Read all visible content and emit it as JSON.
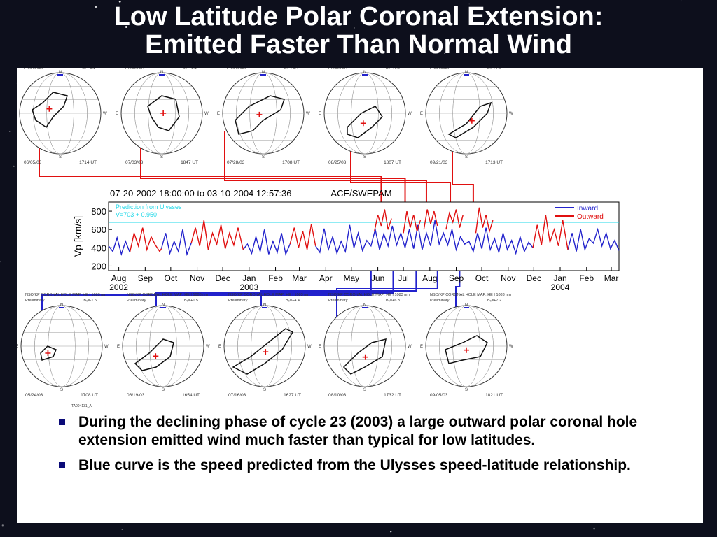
{
  "slide": {
    "title_line1": "Low Latitude Polar Coronal Extension:",
    "title_line2": "Emitted Faster Than Normal Wind",
    "bullets": [
      "During the declining phase of cycle 23 (2003) a large outward polar coronal hole extension emitted wind much faster than typical for low latitudes.",
      "Blue curve is the speed predicted from the Ulysses  speed-latitude relationship."
    ],
    "figure_id": "TA004131_A"
  },
  "colors": {
    "inward": "#2222cc",
    "outward": "#e01010",
    "prediction": "#22d8e8",
    "ink": "#333333"
  },
  "coronal_maps": {
    "header": "NSO/KP CORONAL HOLE MAP: HE I 1083 nm",
    "status": "Preliminary",
    "top_row": [
      {
        "date": "06/05/03",
        "time": "1714 UT",
        "b0": "B₀=-0.1"
      },
      {
        "date": "07/03/03",
        "time": "1847 UT",
        "b0": "B₀=+3.1"
      },
      {
        "date": "07/28/03",
        "time": "1708 UT",
        "b0": "B₀=+5.4"
      },
      {
        "date": "08/25/03",
        "time": "1807 UT",
        "b0": "B₀=+7.0"
      },
      {
        "date": "09/21/03",
        "time": "1713 UT",
        "b0": "B₀=+7.0"
      }
    ],
    "bottom_row": [
      {
        "date": "05/24/03",
        "time": "1708 UT",
        "b0": "B₀=-1.5"
      },
      {
        "date": "06/19/03",
        "time": "1654 UT",
        "b0": "B₀=+1.5"
      },
      {
        "date": "07/16/03",
        "time": "1627 UT",
        "b0": "B₀=+4.4"
      },
      {
        "date": "08/10/03",
        "time": "1732 UT",
        "b0": "B₀=+6.3"
      },
      {
        "date": "09/05/03",
        "time": "1821 UT",
        "b0": "B₀=+7.2"
      }
    ],
    "compass": {
      "n": "N",
      "s": "S",
      "e": "E",
      "w": "W"
    }
  },
  "chart_data": {
    "type": "line",
    "title": "ACE/SWEPAM",
    "range_label": "07-20-2002 18:00:00 to 03-10-2004 12:57:36",
    "ylabel": "Vp [km/s]",
    "ylim": [
      150,
      900
    ],
    "yticks": [
      200,
      400,
      600,
      800
    ],
    "xlim": [
      "2002-07-20",
      "2004-03-10"
    ],
    "x_tick_labels": [
      "Aug",
      "Sep",
      "Oct",
      "Nov",
      "Dec",
      "Jan",
      "Feb",
      "Mar",
      "Apr",
      "May",
      "Jun",
      "Jul",
      "Aug",
      "Sep",
      "Oct",
      "Nov",
      "Dec",
      "Jan",
      "Feb",
      "Mar"
    ],
    "x_tick_dates": [
      "2002-08-01",
      "2002-09-01",
      "2002-10-01",
      "2002-11-01",
      "2002-12-01",
      "2003-01-01",
      "2003-02-01",
      "2003-03-01",
      "2003-04-01",
      "2003-05-01",
      "2003-06-01",
      "2003-07-01",
      "2003-08-01",
      "2003-09-01",
      "2003-10-01",
      "2003-11-01",
      "2003-12-01",
      "2004-01-01",
      "2004-02-01",
      "2004-03-01"
    ],
    "year_labels": [
      {
        "label": "2002",
        "date": "2002-08-01"
      },
      {
        "label": "2003",
        "date": "2003-01-01"
      },
      {
        "label": "2004",
        "date": "2004-01-01"
      }
    ],
    "legend": [
      "Inward",
      "Outward"
    ],
    "legend_position": "top-right",
    "annotation": [
      "Prediction from Ulysses",
      "V=703 + 0.950"
    ],
    "prediction_level": 680,
    "series": [
      {
        "name": "Inward",
        "color": "#2222cc",
        "segments": [
          {
            "dates": [
              "2002-07-20",
              "2002-07-25",
              "2002-07-30",
              "2002-08-04",
              "2002-08-09",
              "2002-08-14"
            ],
            "values": [
              420,
              360,
              510,
              330,
              470,
              350
            ]
          },
          {
            "dates": [
              "2002-09-20",
              "2002-09-25",
              "2002-09-30",
              "2002-10-05",
              "2002-10-10",
              "2002-10-15",
              "2002-10-20",
              "2002-10-25"
            ],
            "values": [
              390,
              560,
              340,
              470,
              360,
              600,
              330,
              450
            ]
          },
          {
            "dates": [
              "2002-12-25",
              "2002-12-30",
              "2003-01-04",
              "2003-01-09",
              "2003-01-14",
              "2003-01-19",
              "2003-01-24",
              "2003-01-29",
              "2003-02-03",
              "2003-02-08",
              "2003-02-13",
              "2003-02-18"
            ],
            "values": [
              380,
              440,
              340,
              520,
              360,
              600,
              330,
              470,
              350,
              560,
              330,
              440
            ]
          },
          {
            "dates": [
              "2003-03-20",
              "2003-03-25",
              "2003-03-30",
              "2003-04-04",
              "2003-04-09",
              "2003-04-14",
              "2003-04-19",
              "2003-04-24",
              "2003-04-29",
              "2003-05-04",
              "2003-05-09",
              "2003-05-14",
              "2003-05-19",
              "2003-05-24",
              "2003-05-29",
              "2003-06-03",
              "2003-06-08",
              "2003-06-13",
              "2003-06-18",
              "2003-06-23",
              "2003-06-28",
              "2003-07-03",
              "2003-07-08",
              "2003-07-13",
              "2003-07-18",
              "2003-07-23",
              "2003-07-28",
              "2003-08-02",
              "2003-08-07",
              "2003-08-12",
              "2003-08-17",
              "2003-08-22",
              "2003-08-27",
              "2003-09-01",
              "2003-09-06",
              "2003-09-11",
              "2003-09-16",
              "2003-09-21",
              "2003-09-26",
              "2003-10-01",
              "2003-10-06",
              "2003-10-11",
              "2003-10-16",
              "2003-10-21",
              "2003-10-26",
              "2003-10-31",
              "2003-11-05",
              "2003-11-10",
              "2003-11-15",
              "2003-11-20",
              "2003-11-25",
              "2003-11-30"
            ],
            "values": [
              420,
              350,
              610,
              380,
              520,
              340,
              470,
              360,
              650,
              400,
              560,
              370,
              480,
              420,
              600,
              380,
              550,
              420,
              640,
              430,
              560,
              400,
              600,
              390,
              650,
              380,
              560,
              420,
              700,
              440,
              560,
              430,
              600,
              380,
              520,
              440,
              470,
              360,
              560,
              390,
              620,
              380,
              500,
              350,
              560,
              380,
              480,
              340,
              520,
              360,
              460,
              400
            ]
          },
          {
            "dates": [
              "2004-01-10",
              "2004-01-15",
              "2004-01-20",
              "2004-01-25",
              "2004-01-30",
              "2004-02-04",
              "2004-02-09",
              "2004-02-14",
              "2004-02-19",
              "2004-02-24",
              "2004-02-29",
              "2004-03-05",
              "2004-03-10"
            ],
            "values": [
              380,
              560,
              360,
              600,
              380,
              500,
              450,
              600,
              420,
              560,
              390,
              480,
              370
            ]
          }
        ]
      },
      {
        "name": "Outward",
        "color": "#e01010",
        "segments": [
          {
            "dates": [
              "2002-08-14",
              "2002-08-19",
              "2002-08-24",
              "2002-08-29",
              "2002-09-03",
              "2002-09-08",
              "2002-09-13",
              "2002-09-18",
              "2002-09-20"
            ],
            "values": [
              350,
              560,
              420,
              620,
              380,
              520,
              430,
              360,
              390
            ]
          },
          {
            "dates": [
              "2002-10-25",
              "2002-10-30",
              "2002-11-04",
              "2002-11-09",
              "2002-11-14",
              "2002-11-19",
              "2002-11-24",
              "2002-11-29",
              "2002-12-04",
              "2002-12-09",
              "2002-12-14",
              "2002-12-19",
              "2002-12-25"
            ],
            "values": [
              450,
              620,
              420,
              700,
              380,
              560,
              440,
              650,
              390,
              560,
              430,
              620,
              380
            ]
          },
          {
            "dates": [
              "2003-02-18",
              "2003-02-23",
              "2003-02-28",
              "2003-03-05",
              "2003-03-10",
              "2003-03-15",
              "2003-03-20"
            ],
            "values": [
              440,
              620,
              400,
              580,
              380,
              660,
              420
            ]
          },
          {
            "dates": [
              "2003-05-28",
              "2003-06-01",
              "2003-06-05",
              "2003-06-09",
              "2003-06-13",
              "2003-06-17"
            ],
            "values": [
              580,
              760,
              640,
              820,
              600,
              720
            ]
          },
          {
            "dates": [
              "2003-07-01",
              "2003-07-05",
              "2003-07-09",
              "2003-07-13",
              "2003-07-17",
              "2003-07-21"
            ],
            "values": [
              560,
              800,
              620,
              760,
              580,
              700
            ]
          },
          {
            "dates": [
              "2003-07-25",
              "2003-07-29",
              "2003-08-02",
              "2003-08-06",
              "2003-08-10"
            ],
            "values": [
              600,
              820,
              660,
              800,
              640
            ]
          },
          {
            "dates": [
              "2003-08-20",
              "2003-08-24",
              "2003-08-28",
              "2003-09-01",
              "2003-09-05",
              "2003-09-09"
            ],
            "values": [
              600,
              780,
              680,
              820,
              620,
              760
            ]
          },
          {
            "dates": [
              "2003-09-24",
              "2003-09-28",
              "2003-10-02",
              "2003-10-06",
              "2003-10-10",
              "2003-10-14"
            ],
            "values": [
              560,
              840,
              620,
              760,
              580,
              700
            ]
          },
          {
            "dates": [
              "2003-11-30",
              "2003-12-05",
              "2003-12-10",
              "2003-12-15",
              "2003-12-20",
              "2003-12-25",
              "2003-12-30",
              "2004-01-04",
              "2004-01-10"
            ],
            "values": [
              400,
              650,
              430,
              760,
              460,
              600,
              420,
              700,
              380
            ]
          }
        ]
      }
    ]
  }
}
